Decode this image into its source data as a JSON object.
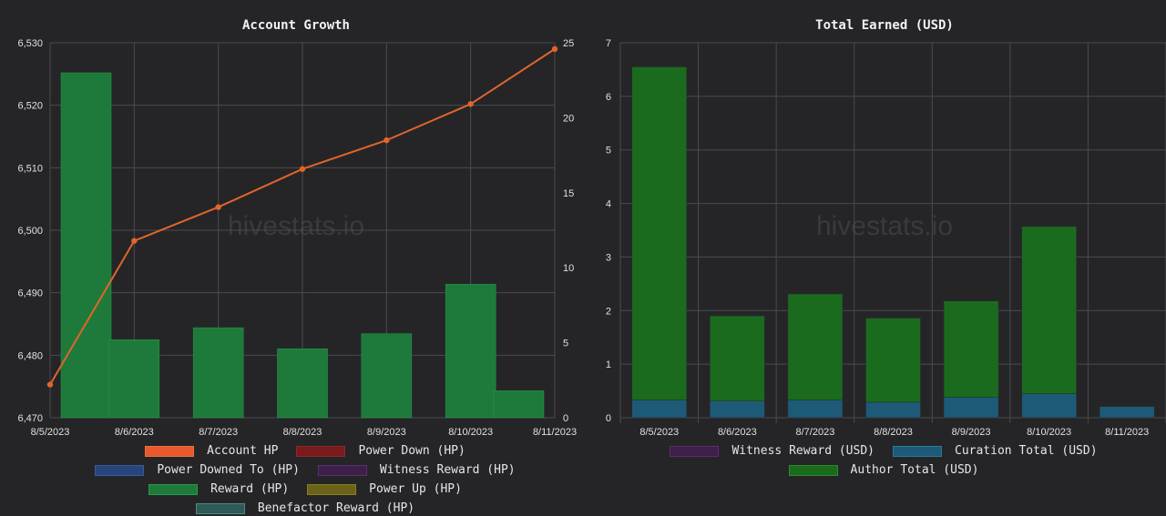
{
  "chart_data": [
    {
      "type": "bar+line",
      "title": "Account Growth",
      "watermark": "hivestats.io",
      "categories": [
        "8/5/2023",
        "8/6/2023",
        "8/7/2023",
        "8/8/2023",
        "8/9/2023",
        "8/10/2023",
        "8/11/2023"
      ],
      "line_series": {
        "name": "Account HP",
        "axis": "left",
        "color": "#e0652b",
        "values": [
          6475.3,
          6498.3,
          6503.7,
          6509.8,
          6514.4,
          6520.2,
          6529.0
        ]
      },
      "bar_series": {
        "name": "Reward (HP)",
        "axis": "right",
        "color": "#1e7a3a",
        "values": [
          23.0,
          5.2,
          6.0,
          4.6,
          5.6,
          8.9,
          1.8
        ]
      },
      "y_left": {
        "min": 6470,
        "max": 6530,
        "ticks": [
          "6,470",
          "6,480",
          "6,490",
          "6,500",
          "6,510",
          "6,520",
          "6,530"
        ]
      },
      "y_right": {
        "min": 0,
        "max": 25,
        "ticks": [
          "0",
          "5",
          "10",
          "15",
          "20",
          "25"
        ]
      },
      "legend": [
        {
          "label": "Account HP",
          "fill": "#e8582a",
          "border": "#f07040"
        },
        {
          "label": "Power Down (HP)",
          "fill": "#7a1a1c",
          "border": "#8a2a2c"
        },
        {
          "label": "Power Downed To (HP)",
          "fill": "#27457a",
          "border": "#3a5a9a"
        },
        {
          "label": "Witness Reward (HP)",
          "fill": "#3d1f4a",
          "border": "#5a2f6a"
        },
        {
          "label": "Reward (HP)",
          "fill": "#1e7a3a",
          "border": "#2a9a4a"
        },
        {
          "label": "Power Up (HP)",
          "fill": "#6a6218",
          "border": "#8a8020"
        },
        {
          "label": "Benefactor Reward (HP)",
          "fill": "#2f5a57",
          "border": "#4a8a86"
        }
      ]
    },
    {
      "type": "stacked-bar",
      "title": "Total Earned (USD)",
      "watermark": "hivestats.io",
      "categories": [
        "8/5/2023",
        "8/6/2023",
        "8/7/2023",
        "8/8/2023",
        "8/9/2023",
        "8/10/2023",
        "8/11/2023"
      ],
      "series": [
        {
          "name": "Curation Total (USD)",
          "color": "#1d5a78",
          "values": [
            0.33,
            0.31,
            0.33,
            0.29,
            0.38,
            0.45,
            0.21
          ]
        },
        {
          "name": "Author Total (USD)",
          "color": "#1b6b1f",
          "values": [
            6.22,
            1.59,
            1.98,
            1.57,
            1.8,
            3.12,
            0.0
          ]
        }
      ],
      "y": {
        "min": 0,
        "max": 7,
        "ticks": [
          "0",
          "1",
          "2",
          "3",
          "4",
          "5",
          "6",
          "7"
        ]
      },
      "legend": [
        {
          "label": "Witness Reward (USD)",
          "fill": "#3d1f4a",
          "border": "#5a2f6a"
        },
        {
          "label": "Curation Total (USD)",
          "fill": "#1d5a78",
          "border": "#2a7a9a"
        },
        {
          "label": "Author Total (USD)",
          "fill": "#1b6b1f",
          "border": "#2a8a2f"
        }
      ]
    }
  ]
}
